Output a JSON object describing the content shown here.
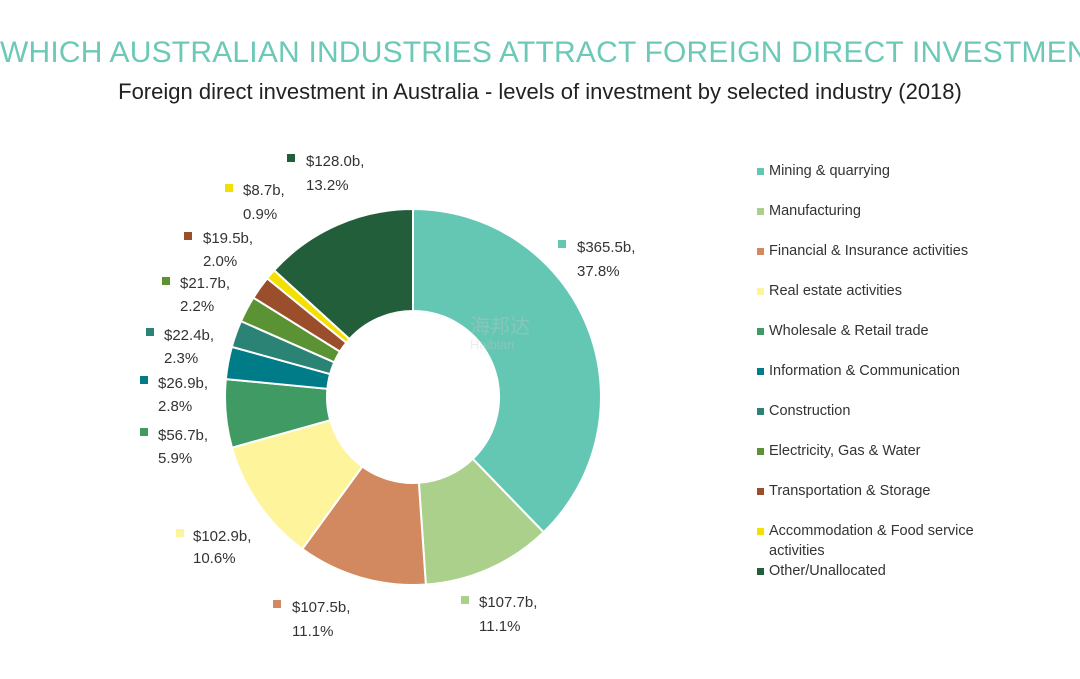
{
  "title": "WHICH AUSTRALIAN INDUSTRIES ATTRACT FOREIGN DIRECT INVESTMENT?",
  "subtitle": "Foreign direct investment in Australia - levels of investment by selected industry (2018)",
  "watermark": {
    "main": "海邦达",
    "sub": "Haibian"
  },
  "chart_data": {
    "type": "pie",
    "donut": true,
    "legend_position": "right",
    "slices": [
      {
        "name": "Mining & quarrying",
        "value_label": "$365.5b,",
        "pct_label": "37.8%",
        "value": 365.5,
        "pct": 37.8,
        "color": "#63c7b4"
      },
      {
        "name": "Manufacturing",
        "value_label": "$107.7b,",
        "pct_label": "11.1%",
        "value": 107.7,
        "pct": 11.1,
        "color": "#aad08c"
      },
      {
        "name": "Financial & Insurance activities",
        "value_label": "$107.5b,",
        "pct_label": "11.1%",
        "value": 107.5,
        "pct": 11.1,
        "color": "#d2895f"
      },
      {
        "name": "Real estate activities",
        "value_label": "$102.9b,",
        "pct_label": "10.6%",
        "value": 102.9,
        "pct": 10.6,
        "color": "#fdf49b"
      },
      {
        "name": "Wholesale & Retail trade",
        "value_label": "$56.7b,",
        "pct_label": "5.9%",
        "value": 56.7,
        "pct": 5.9,
        "color": "#3f9b63"
      },
      {
        "name": "Information & Communication",
        "value_label": "$26.9b,",
        "pct_label": "2.8%",
        "value": 26.9,
        "pct": 2.8,
        "color": "#007c88"
      },
      {
        "name": "Construction",
        "value_label": "$22.4b,",
        "pct_label": "2.3%",
        "value": 22.4,
        "pct": 2.3,
        "color": "#2b8375"
      },
      {
        "name": "Electricity, Gas & Water",
        "value_label": "$21.7b,",
        "pct_label": "2.2%",
        "value": 21.7,
        "pct": 2.2,
        "color": "#5b9334"
      },
      {
        "name": "Transportation & Storage",
        "value_label": "$19.5b,",
        "pct_label": "2.0%",
        "value": 19.5,
        "pct": 2.0,
        "color": "#9a4e2c"
      },
      {
        "name": "Accommodation & Food service activities",
        "value_label": "$8.7b,",
        "pct_label": "0.9%",
        "value": 8.7,
        "pct": 0.9,
        "color": "#f4e000"
      },
      {
        "name": "Other/Unallocated",
        "value_label": "$128.0b,",
        "pct_label": "13.2%",
        "value": 128.0,
        "pct": 13.2,
        "color": "#235e3a"
      }
    ]
  }
}
